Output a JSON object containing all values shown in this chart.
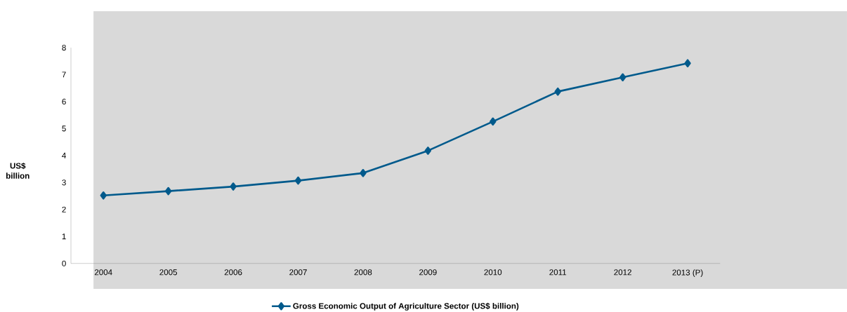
{
  "chart_data": {
    "type": "line",
    "ylabel": "US$ billion",
    "categories": [
      "2004",
      "2005",
      "2006",
      "2007",
      "2008",
      "2009",
      "2010",
      "2011",
      "2012",
      "2013 (P)"
    ],
    "series": [
      {
        "name": "Gross Economic Output of Agriculture Sector (US$ billion)",
        "color": "#005a8c",
        "values": [
          2.52,
          2.68,
          2.85,
          3.07,
          3.35,
          4.18,
          5.26,
          6.37,
          6.9,
          7.42
        ]
      }
    ],
    "ylim": [
      0,
      8
    ],
    "yticks": [
      0,
      1,
      2,
      3,
      4,
      5,
      6,
      7,
      8
    ],
    "legend": "bottom",
    "marker": "diamond"
  }
}
